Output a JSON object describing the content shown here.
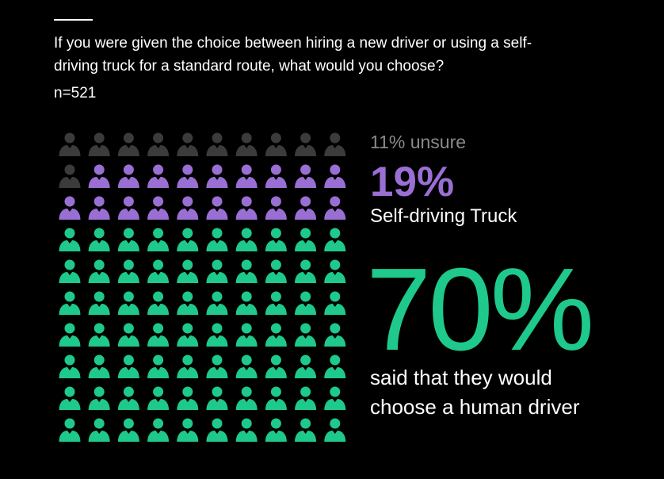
{
  "chart_data": {
    "type": "pictogram",
    "title": "If you were given the choice between hiring a new driver or using a self-driving truck for a standard route, what would you choose?",
    "subtitle": "n=521",
    "categories": [
      "unsure",
      "Self-driving Truck",
      "said that they would choose a human driver"
    ],
    "values": [
      11,
      19,
      70
    ],
    "value_labels": [
      "11%",
      "19%",
      "70%"
    ],
    "colors": [
      "#3b3b3b",
      "#9a6fd4",
      "#1ec98b"
    ],
    "label_colors": [
      "#8a8a8a",
      "#9a6fd4",
      "#1ec98b"
    ],
    "columns": 10
  }
}
